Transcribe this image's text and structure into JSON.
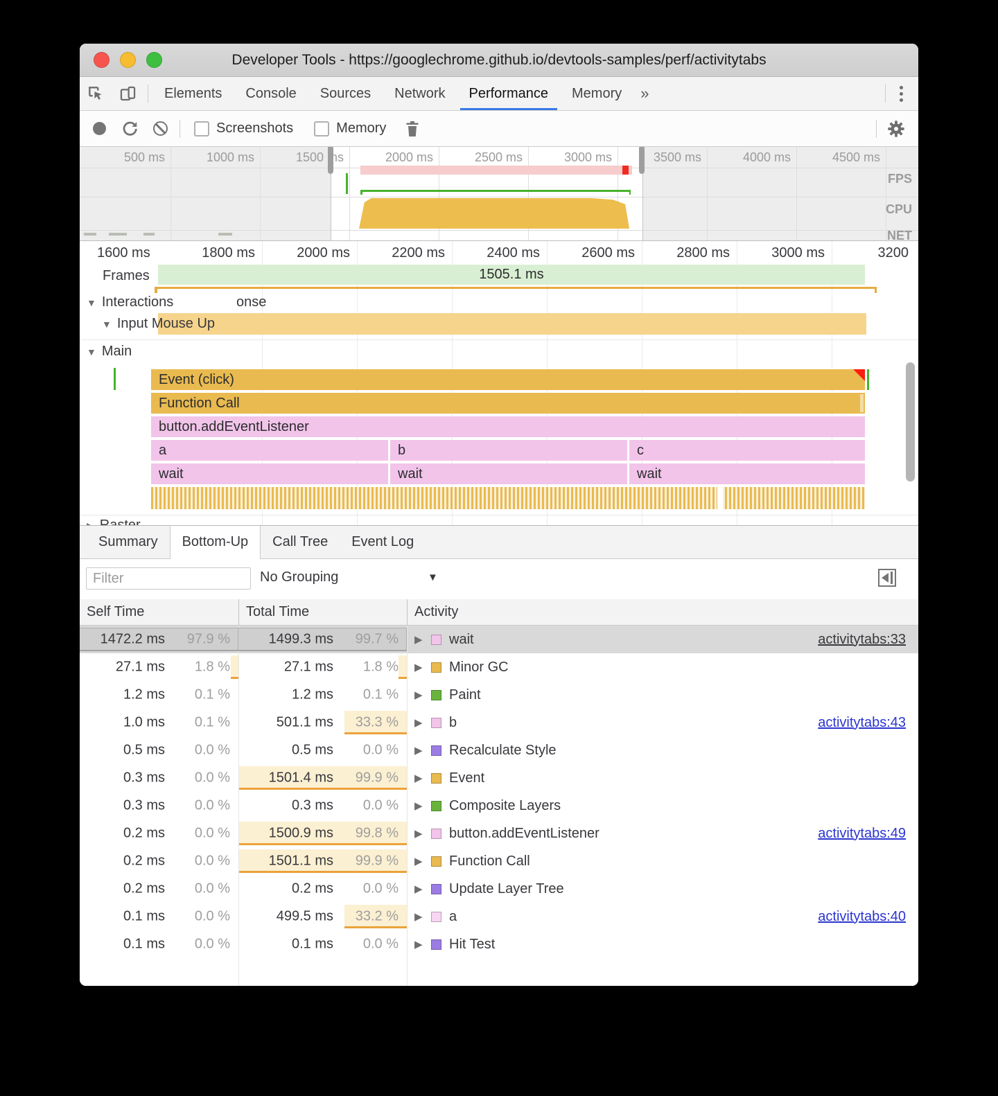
{
  "window": {
    "title": "Developer Tools - https://googlechrome.github.io/devtools-samples/perf/activitytabs"
  },
  "tabs": {
    "items": [
      "Elements",
      "Console",
      "Sources",
      "Network",
      "Performance",
      "Memory"
    ],
    "active": "Performance",
    "overflow": "»"
  },
  "toolbar": {
    "screenshots_label": "Screenshots",
    "memory_label": "Memory"
  },
  "overview": {
    "ruler": [
      "500 ms",
      "1000 ms",
      "1500 ms",
      "2000 ms",
      "2500 ms",
      "3000 ms",
      "3500 ms",
      "4000 ms",
      "4500 ms"
    ],
    "lanes": [
      "FPS",
      "CPU",
      "NET"
    ]
  },
  "timeline": {
    "ruler": [
      "1600 ms",
      "1800 ms",
      "2000 ms",
      "2200 ms",
      "2400 ms",
      "2600 ms",
      "2800 ms",
      "3000 ms",
      "3200"
    ],
    "frames_label": "Frames",
    "frames_value": "1505.1 ms",
    "interactions_label": "Interactions",
    "interactions_partial": "onse",
    "input_label": "Input Mouse Up",
    "main_label": "Main",
    "raster_label": "Raster",
    "bars": {
      "event": "Event (click)",
      "function_call": "Function Call",
      "listener": "button.addEventListener",
      "a": "a",
      "b": "b",
      "c": "c",
      "wait": "wait"
    }
  },
  "bottom": {
    "tabs": [
      "Summary",
      "Bottom-Up",
      "Call Tree",
      "Event Log"
    ],
    "active_tab": "Bottom-Up",
    "filter_placeholder": "Filter",
    "grouping": "No Grouping",
    "columns": [
      "Self Time",
      "Total Time",
      "Activity"
    ],
    "rows": [
      {
        "self_ms": "1472.2 ms",
        "self_pct": "97.9 %",
        "total_ms": "1499.3 ms",
        "total_pct": "99.7 %",
        "label": "wait",
        "swatch": "#f2c4ea",
        "link": "activitytabs:33",
        "selected": true,
        "self_heat": 1,
        "total_heat": 1
      },
      {
        "self_ms": "27.1 ms",
        "self_pct": "1.8 %",
        "total_ms": "27.1 ms",
        "total_pct": "1.8 %",
        "label": "Minor GC",
        "swatch": "#e9ba4f",
        "self_heat": 0.05,
        "total_heat": 0.05
      },
      {
        "self_ms": "1.2 ms",
        "self_pct": "0.1 %",
        "total_ms": "1.2 ms",
        "total_pct": "0.1 %",
        "label": "Paint",
        "swatch": "#69b33c"
      },
      {
        "self_ms": "1.0 ms",
        "self_pct": "0.1 %",
        "total_ms": "501.1 ms",
        "total_pct": "33.3 %",
        "label": "b",
        "swatch": "#f2c4ea",
        "link": "activitytabs:43",
        "total_heat": 0.37
      },
      {
        "self_ms": "0.5 ms",
        "self_pct": "0.0 %",
        "total_ms": "0.5 ms",
        "total_pct": "0.0 %",
        "label": "Recalculate Style",
        "swatch": "#9b7ce3"
      },
      {
        "self_ms": "0.3 ms",
        "self_pct": "0.0 %",
        "total_ms": "1501.4 ms",
        "total_pct": "99.9 %",
        "label": "Event",
        "swatch": "#e9ba4f",
        "total_heat": 1
      },
      {
        "self_ms": "0.3 ms",
        "self_pct": "0.0 %",
        "total_ms": "0.3 ms",
        "total_pct": "0.0 %",
        "label": "Composite Layers",
        "swatch": "#69b33c"
      },
      {
        "self_ms": "0.2 ms",
        "self_pct": "0.0 %",
        "total_ms": "1500.9 ms",
        "total_pct": "99.8 %",
        "label": "button.addEventListener",
        "swatch": "#f2c4ea",
        "link": "activitytabs:49",
        "total_heat": 1
      },
      {
        "self_ms": "0.2 ms",
        "self_pct": "0.0 %",
        "total_ms": "1501.1 ms",
        "total_pct": "99.9 %",
        "label": "Function Call",
        "swatch": "#e9ba4f",
        "total_heat": 1
      },
      {
        "self_ms": "0.2 ms",
        "self_pct": "0.0 %",
        "total_ms": "0.2 ms",
        "total_pct": "0.0 %",
        "label": "Update Layer Tree",
        "swatch": "#9b7ce3"
      },
      {
        "self_ms": "0.1 ms",
        "self_pct": "0.0 %",
        "total_ms": "499.5 ms",
        "total_pct": "33.2 %",
        "label": "a",
        "swatch": "#f6d6f1",
        "link": "activitytabs:40",
        "total_heat": 0.37
      },
      {
        "self_ms": "0.1 ms",
        "self_pct": "0.0 %",
        "total_ms": "0.1 ms",
        "total_pct": "0.0 %",
        "label": "Hit Test",
        "swatch": "#9b7ce3"
      }
    ]
  },
  "colors": {
    "accent_blue": "#3b78e7",
    "link_blue": "#2b35d0",
    "script_pink": "#f2c4ea",
    "task_orange": "#e9ba4f",
    "paint_green": "#69b33c",
    "render_purple": "#9b7ce3",
    "frames_green": "#d9efd3",
    "heat_underline": "#eba23b",
    "longtask_red": "#ee2c24"
  }
}
